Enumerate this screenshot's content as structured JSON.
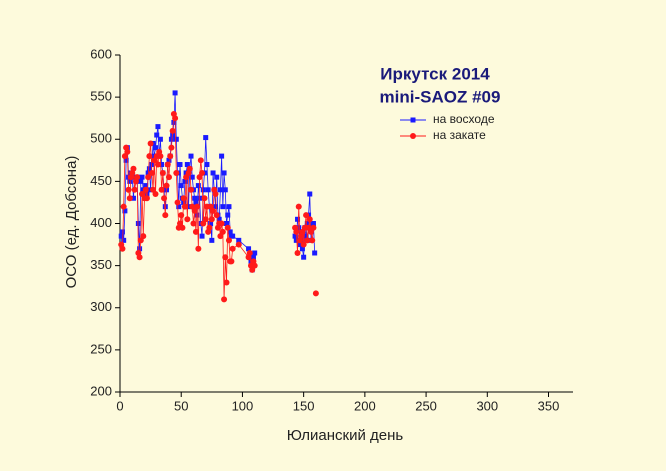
{
  "chart_data": {
    "type": "line",
    "title": "Иркутск 2014",
    "subtitle": "mini-SAOZ #09",
    "x_label": "Юлианский день",
    "y_label": "ОСО (ед. Добсона)",
    "xlim": [
      0,
      370
    ],
    "ylim": [
      200,
      600
    ],
    "xticks": [
      0,
      50,
      100,
      150,
      200,
      250,
      300,
      350
    ],
    "yticks": [
      200,
      250,
      300,
      350,
      400,
      450,
      500,
      550,
      600
    ],
    "legend": "top-right",
    "markers": true,
    "x": [
      1,
      2,
      3,
      4,
      5,
      6,
      7,
      8,
      9,
      10,
      11,
      12,
      13,
      14,
      15,
      16,
      17,
      18,
      19,
      20,
      21,
      22,
      23,
      24,
      25,
      26,
      27,
      28,
      29,
      30,
      31,
      32,
      33,
      34,
      35,
      36,
      37,
      38,
      39,
      40,
      41,
      42,
      43,
      44,
      45,
      46,
      47,
      48,
      49,
      50,
      51,
      52,
      53,
      54,
      55,
      56,
      57,
      58,
      59,
      60,
      61,
      62,
      63,
      64,
      65,
      66,
      67,
      68,
      69,
      70,
      71,
      72,
      73,
      74,
      75,
      76,
      77,
      78,
      79,
      80,
      81,
      82,
      83,
      84,
      85,
      86,
      87,
      88,
      89,
      90,
      91,
      92,
      97,
      105,
      106,
      107,
      108,
      109,
      110,
      null,
      143,
      144,
      145,
      146,
      147,
      148,
      149,
      150,
      151,
      152,
      153,
      154,
      155,
      156,
      157,
      158,
      159,
      160
    ],
    "series": [
      {
        "name": "на восходе",
        "color": "#1a1aff",
        "marker": "square",
        "values": [
          385,
          390,
          380,
          415,
          475,
          490,
          455,
          450,
          460,
          455,
          430,
          455,
          450,
          455,
          400,
          370,
          450,
          455,
          440,
          430,
          445,
          435,
          460,
          465,
          440,
          470,
          495,
          480,
          490,
          505,
          515,
          480,
          500,
          470,
          460,
          440,
          420,
          440,
          470,
          475,
          480,
          500,
          505,
          520,
          555,
          500,
          460,
          420,
          470,
          445,
          430,
          425,
          450,
          460,
          470,
          420,
          465,
          480,
          455,
          440,
          430,
          425,
          410,
          445,
          430,
          400,
          385,
          440,
          460,
          502,
          470,
          440,
          420,
          400,
          380,
          460,
          440,
          420,
          455,
          410,
          405,
          440,
          480,
          420,
          460,
          440,
          400,
          410,
          420,
          390,
          385,
          385,
          380,
          370,
          360,
          355,
          345,
          360,
          365,
          null,
          385,
          380,
          405,
          395,
          375,
          380,
          370,
          360,
          395,
          385,
          400,
          410,
          435,
          380,
          395,
          400,
          365,
          null
        ]
      },
      {
        "name": "на закате",
        "color": "#ff1a1a",
        "marker": "circle",
        "values": [
          375,
          370,
          420,
          480,
          490,
          485,
          440,
          430,
          455,
          460,
          465,
          440,
          450,
          455,
          365,
          360,
          380,
          435,
          385,
          430,
          440,
          430,
          455,
          480,
          495,
          460,
          440,
          475,
          435,
          480,
          470,
          485,
          480,
          440,
          460,
          430,
          410,
          445,
          470,
          455,
          480,
          490,
          510,
          530,
          525,
          460,
          425,
          395,
          400,
          410,
          395,
          430,
          420,
          455,
          405,
          460,
          465,
          440,
          420,
          400,
          415,
          390,
          420,
          370,
          455,
          475,
          460,
          400,
          430,
          405,
          420,
          390,
          395,
          420,
          405,
          415,
          440,
          435,
          410,
          395,
          400,
          385,
          400,
          390,
          310,
          360,
          330,
          395,
          380,
          355,
          355,
          370,
          375,
          360,
          365,
          350,
          345,
          355,
          350,
          null,
          395,
          390,
          365,
          420,
          380,
          385,
          390,
          375,
          395,
          410,
          380,
          395,
          405,
          390,
          380,
          395,
          null,
          317
        ]
      }
    ]
  }
}
